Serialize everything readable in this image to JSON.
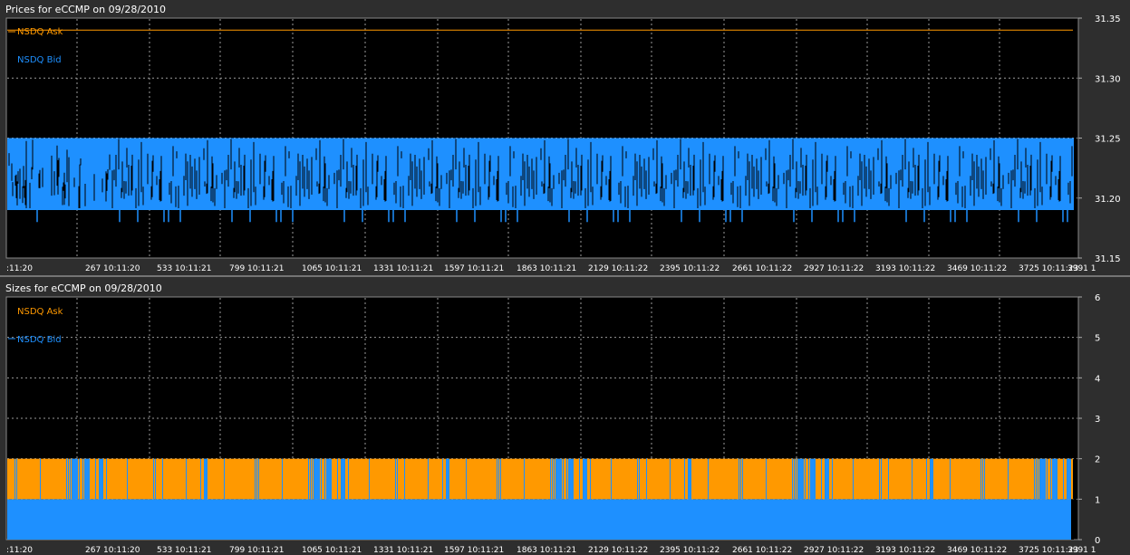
{
  "window": {
    "background": "#2e2e2e",
    "plot_background": "#000000",
    "grid_color": "#9a9a9a",
    "text_color": "#ffffff"
  },
  "chart_data": [
    {
      "type": "line",
      "title": "Prices for  eCCMP  on  09/28/2010",
      "ylim": [
        31.15,
        31.35
      ],
      "yticks": [
        "31.15",
        "31.20",
        "31.25",
        "31.30",
        "31.35"
      ],
      "xticks": [
        ":11:20",
        "267 10:11:20",
        "533 10:11:21",
        "799 10:11:21",
        "1065 10:11:21",
        "1331 10:11:21",
        "1597 10:11:21",
        "1863 10:11:21",
        "2129 10:11:22",
        "2395 10:11:22",
        "2661 10:11:22",
        "2927 10:11:22",
        "3193 10:11:22",
        "3469 10:11:22",
        "3725 10:11:23",
        "3991 1"
      ],
      "xlim": [
        0,
        4000
      ],
      "grid": true,
      "legend_position": "top-left",
      "series": [
        {
          "name": "NSDQ Ask",
          "color": "#ff9900",
          "values": [
            31.34
          ],
          "constant": true
        },
        {
          "name": "NSDQ Bid",
          "color": "#1e90ff",
          "range": [
            31.18,
            31.25
          ],
          "typical": [
            31.19,
            31.25
          ]
        }
      ]
    },
    {
      "type": "area",
      "title": "Sizes for  eCCMP  on  09/28/2010",
      "ylim": [
        0,
        6
      ],
      "yticks": [
        "0",
        "1",
        "2",
        "3",
        "4",
        "5",
        "6"
      ],
      "xticks": [
        ":11:20",
        "267 10:11:20",
        "533 10:11:21",
        "799 10:11:21",
        "1065 10:11:21",
        "1331 10:11:21",
        "1597 10:11:21",
        "1863 10:11:21",
        "2129 10:11:22",
        "2395 10:11:22",
        "2661 10:11:22",
        "2927 10:11:22",
        "3193 10:11:22",
        "3469 10:11:22",
        "3725 10:11:23",
        "3991 1"
      ],
      "xlim": [
        0,
        4000
      ],
      "grid": true,
      "legend_position": "top-left",
      "series": [
        {
          "name": "NSDQ Ask",
          "color": "#ff9900",
          "values": [
            2
          ]
        },
        {
          "name": "NSDQ Bid",
          "color": "#1e90ff",
          "values": [
            1,
            2
          ]
        }
      ]
    }
  ]
}
